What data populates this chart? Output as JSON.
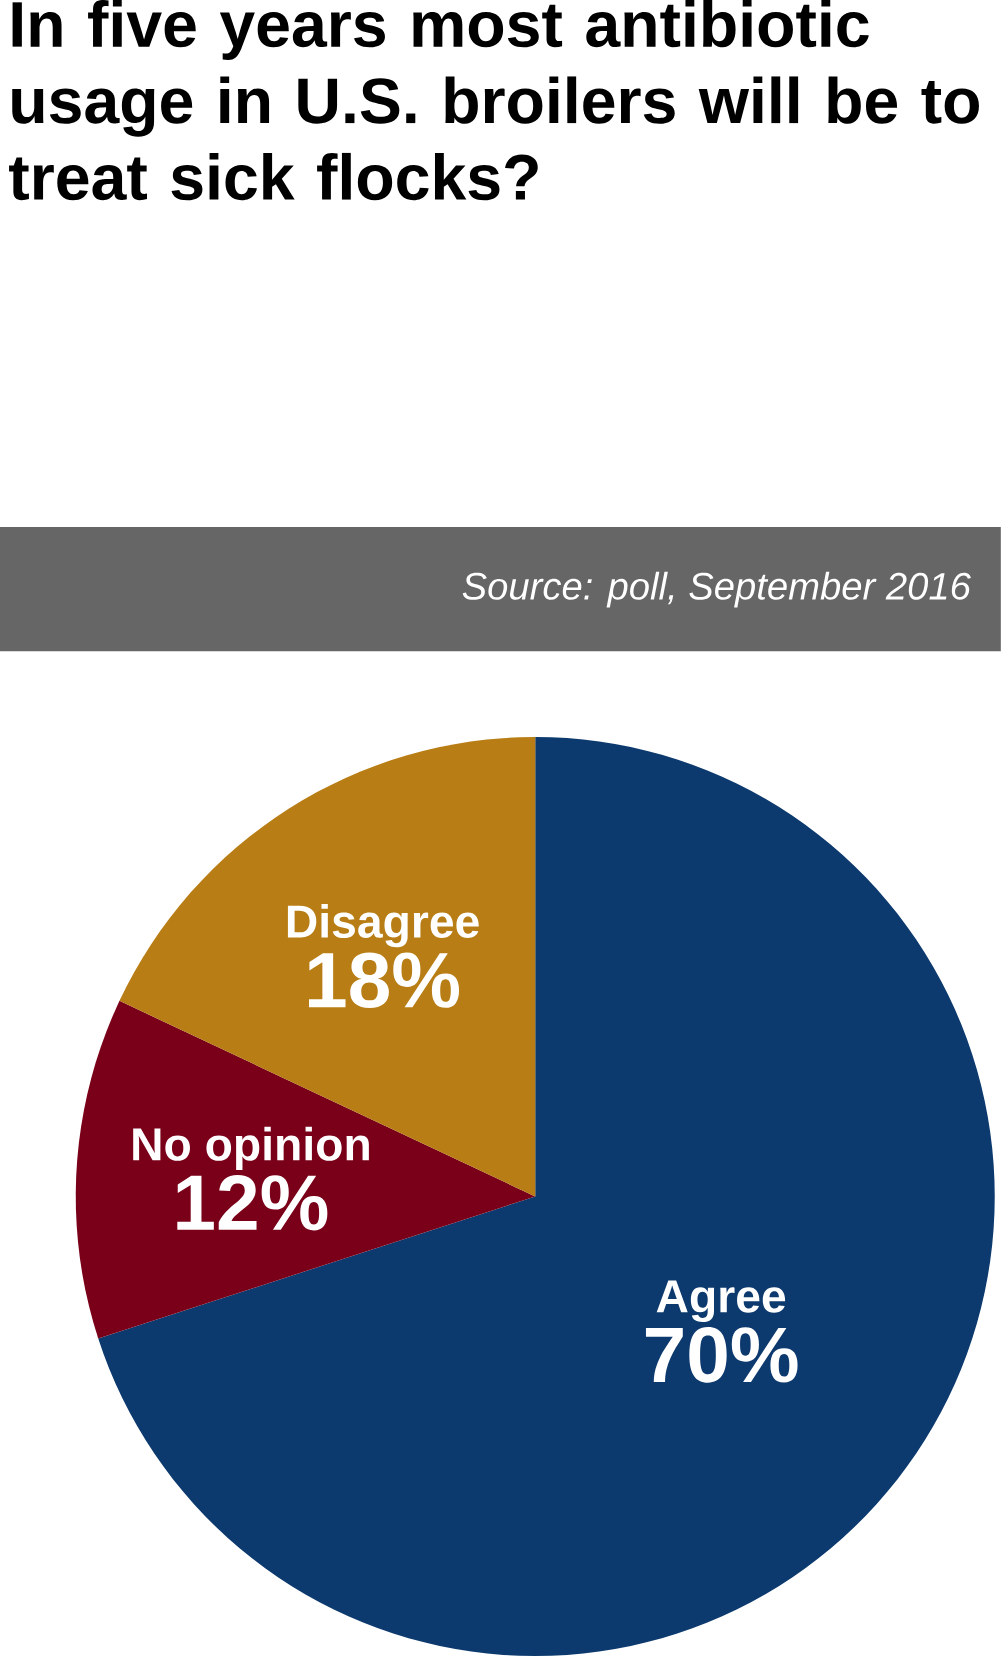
{
  "chart_data": {
    "type": "pie",
    "title": "In five years most antibiotic usage in U.S. broilers will be to treat sick flocks?",
    "annotations": [
      "Source: poll, September 2016"
    ],
    "categories": [
      "Agree",
      "No opinion",
      "Disagree"
    ],
    "values": [
      70,
      12,
      18
    ],
    "colors": [
      "#0d3a6e",
      "#7a0019",
      "#b87d14"
    ],
    "value_labels": [
      "70%",
      "12%",
      "18%"
    ]
  }
}
